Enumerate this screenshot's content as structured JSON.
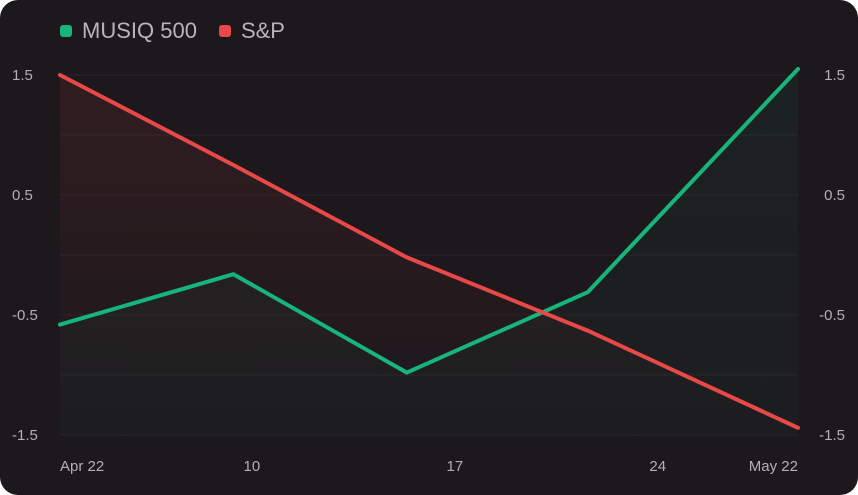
{
  "chart_data": {
    "type": "line",
    "x_tick_labels": [
      "Apr 22",
      "10",
      "17",
      "24",
      "May 22"
    ],
    "y_tick_labels": [
      "1.5",
      "0.5",
      "-0.5",
      "-1.5"
    ],
    "ylim": [
      -1.5,
      1.5
    ],
    "grid": true,
    "legend_position": "top-left",
    "series": [
      {
        "name": "MUSIQ 500",
        "color": "#17b57c",
        "points": [
          {
            "x": 0,
            "y": -0.58
          },
          {
            "x": 0.235,
            "y": -0.16
          },
          {
            "x": 0.47,
            "y": -0.98
          },
          {
            "x": 0.715,
            "y": -0.31
          },
          {
            "x": 1.0,
            "y": 1.55
          }
        ]
      },
      {
        "name": "S&P",
        "color": "#e84848",
        "points": [
          {
            "x": 0,
            "y": 1.5
          },
          {
            "x": 0.235,
            "y": 0.75
          },
          {
            "x": 0.47,
            "y": -0.02
          },
          {
            "x": 0.715,
            "y": -0.63
          },
          {
            "x": 1.0,
            "y": -1.44
          }
        ]
      }
    ]
  }
}
